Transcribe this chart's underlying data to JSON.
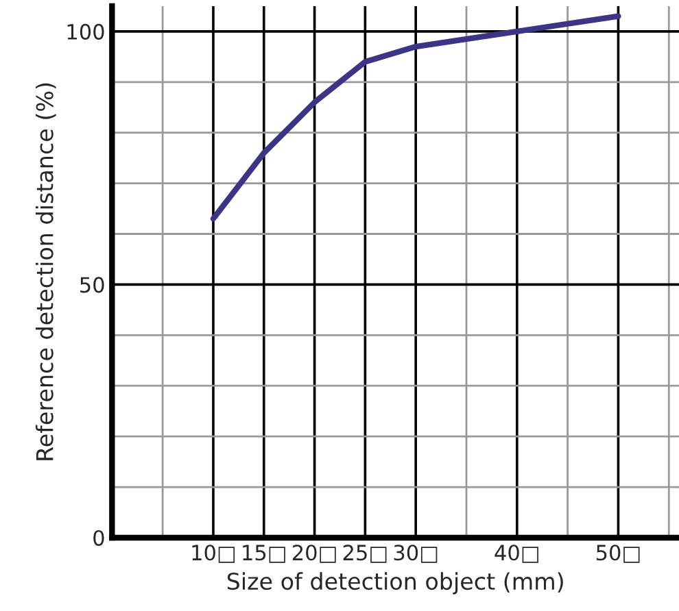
{
  "chart_data": {
    "type": "line",
    "xlabel": "Size of detection object (mm)",
    "ylabel": "Reference detection distance (%)",
    "x": [
      10,
      15,
      17,
      20,
      25,
      30,
      40,
      50
    ],
    "series": [
      {
        "color": "#3c3585",
        "values": [
          63,
          76,
          80,
          86,
          94,
          97,
          100,
          103
        ]
      }
    ],
    "xlim": [
      0,
      56
    ],
    "ylim": [
      0,
      105
    ],
    "xticks": [
      {
        "value": 5,
        "label": null
      },
      {
        "value": 10,
        "label": "10□"
      },
      {
        "value": 15,
        "label": "15□"
      },
      {
        "value": 20,
        "label": "20□"
      },
      {
        "value": 25,
        "label": "25□"
      },
      {
        "value": 30,
        "label": "30□"
      },
      {
        "value": 35,
        "label": null
      },
      {
        "value": 40,
        "label": "40□"
      },
      {
        "value": 45,
        "label": null
      },
      {
        "value": 50,
        "label": "50□"
      },
      {
        "value": 55,
        "label": null
      }
    ],
    "yticks": [
      0,
      {
        "value": 10,
        "label": null
      },
      {
        "value": 20,
        "label": null
      },
      {
        "value": 30,
        "label": null
      },
      {
        "value": 40,
        "label": null
      },
      50,
      {
        "value": 60,
        "label": null
      },
      {
        "value": 70,
        "label": null
      },
      {
        "value": 80,
        "label": null
      },
      {
        "value": 90,
        "label": null
      },
      100
    ],
    "grid": true,
    "marker": "none",
    "line_style": "solid"
  }
}
